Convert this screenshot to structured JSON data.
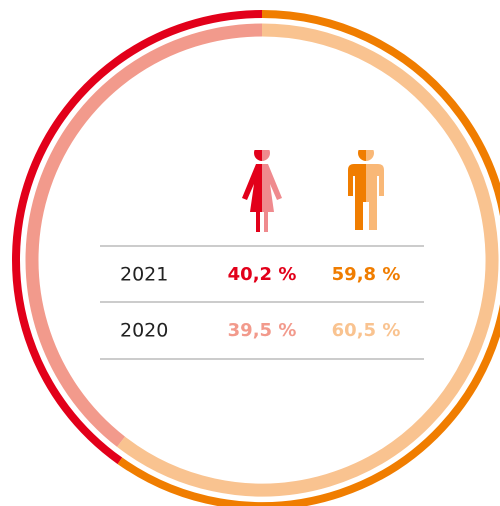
{
  "chart_data": {
    "type": "donut",
    "series": [
      {
        "name": "2021",
        "values": [
          40.2,
          59.8
        ],
        "value_labels": [
          "40,2 %",
          "59,8 %"
        ],
        "colors": [
          "#e2001a",
          "#f07d00"
        ]
      },
      {
        "name": "2020",
        "values": [
          39.5,
          60.5
        ],
        "value_labels": [
          "39,5 %",
          "60,5 %"
        ],
        "colors": [
          "#f29a8c",
          "#f9c390"
        ]
      }
    ]
  }
}
